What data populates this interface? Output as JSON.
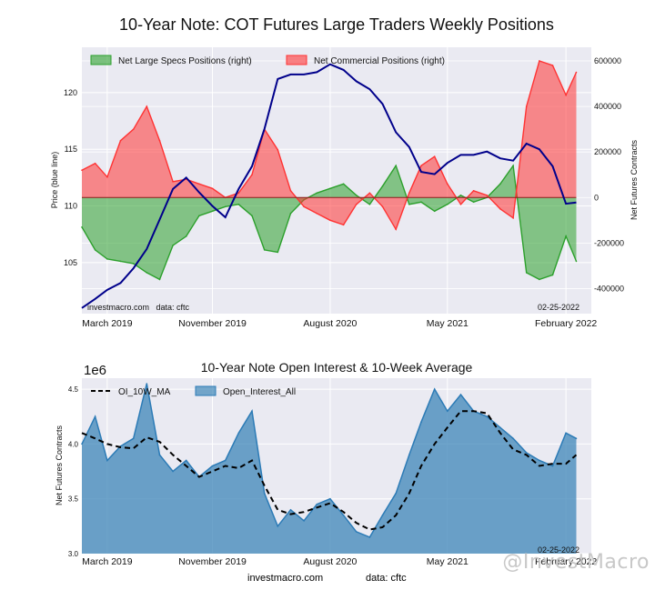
{
  "page_title": "10-Year Note: COT Futures Large Traders Weekly Positions",
  "footer": {
    "source": "investmacro.com",
    "data_note": "data: cftc",
    "watermark": "@InvestMacro"
  },
  "colors": {
    "price_line": "#00008b",
    "specs_fill": "#2ca02c",
    "commercial_fill": "#ff3333",
    "oi_fill": "#3d86b8",
    "oi_line": "#2c7bb6",
    "ma_line": "#000000",
    "plot_bg": "#eaeaf2",
    "grid": "#ffffff"
  },
  "chart_data": [
    {
      "id": "positions",
      "type": "line",
      "title": "",
      "ylabel": "Price (blue line)",
      "y2label": "Net Futures Contracts",
      "x_range": [
        "2019-01-01",
        "2022-04-01"
      ],
      "x_ticks": [
        "March 2019",
        "November 2019",
        "August 2020",
        "May 2021",
        "February 2022"
      ],
      "x_tick_dates": [
        "2019-03-01",
        "2019-11-01",
        "2020-08-01",
        "2021-05-01",
        "2022-02-01"
      ],
      "ylim": [
        100.5,
        124
      ],
      "y_ticks": [
        105,
        110,
        115,
        120
      ],
      "y2lim": [
        -510000,
        660000
      ],
      "y2_ticks": [
        -400000,
        -200000,
        0,
        200000,
        400000,
        600000
      ],
      "legend_position": "top-left",
      "annotation_left": "investmacro.com   data: cftc",
      "annotation_right": "02-25-2022",
      "series": [
        {
          "name": "Net Large Specs Positions (right)",
          "type": "area",
          "axis": "right",
          "x": [
            "2019-01-01",
            "2019-02-01",
            "2019-03-01",
            "2019-04-01",
            "2019-05-01",
            "2019-06-01",
            "2019-07-01",
            "2019-08-01",
            "2019-09-01",
            "2019-10-01",
            "2019-11-01",
            "2019-12-01",
            "2020-01-01",
            "2020-02-01",
            "2020-03-01",
            "2020-04-01",
            "2020-05-01",
            "2020-06-01",
            "2020-07-01",
            "2020-08-01",
            "2020-09-01",
            "2020-10-01",
            "2020-11-01",
            "2020-12-01",
            "2021-01-01",
            "2021-02-01",
            "2021-03-01",
            "2021-04-01",
            "2021-05-01",
            "2021-06-01",
            "2021-07-01",
            "2021-08-01",
            "2021-09-01",
            "2021-10-01",
            "2021-11-01",
            "2021-12-01",
            "2022-01-01",
            "2022-02-01",
            "2022-02-25"
          ],
          "values": [
            -130000,
            -230000,
            -270000,
            -280000,
            -290000,
            -330000,
            -360000,
            -210000,
            -170000,
            -80000,
            -60000,
            -40000,
            -30000,
            -80000,
            -230000,
            -240000,
            -70000,
            -10000,
            20000,
            40000,
            60000,
            10000,
            -30000,
            50000,
            140000,
            -30000,
            -20000,
            -60000,
            -30000,
            10000,
            -20000,
            0,
            60000,
            140000,
            -330000,
            -360000,
            -340000,
            -170000,
            -280000
          ]
        },
        {
          "name": "Net Commercial Positions (right)",
          "type": "area",
          "axis": "right",
          "x": [
            "2019-01-01",
            "2019-02-01",
            "2019-03-01",
            "2019-04-01",
            "2019-05-01",
            "2019-06-01",
            "2019-07-01",
            "2019-08-01",
            "2019-09-01",
            "2019-10-01",
            "2019-11-01",
            "2019-12-01",
            "2020-01-01",
            "2020-02-01",
            "2020-03-01",
            "2020-04-01",
            "2020-05-01",
            "2020-06-01",
            "2020-07-01",
            "2020-08-01",
            "2020-09-01",
            "2020-10-01",
            "2020-11-01",
            "2020-12-01",
            "2021-01-01",
            "2021-02-01",
            "2021-03-01",
            "2021-04-01",
            "2021-05-01",
            "2021-06-01",
            "2021-07-01",
            "2021-08-01",
            "2021-09-01",
            "2021-10-01",
            "2021-11-01",
            "2021-12-01",
            "2022-01-01",
            "2022-02-01",
            "2022-02-25"
          ],
          "values": [
            120000,
            150000,
            90000,
            250000,
            300000,
            400000,
            250000,
            70000,
            80000,
            60000,
            40000,
            0,
            20000,
            100000,
            300000,
            210000,
            30000,
            -40000,
            -70000,
            -100000,
            -120000,
            -30000,
            20000,
            -40000,
            -140000,
            20000,
            140000,
            180000,
            60000,
            -30000,
            30000,
            10000,
            -50000,
            -90000,
            400000,
            600000,
            580000,
            450000,
            550000
          ]
        },
        {
          "name": "",
          "type": "line",
          "axis": "left",
          "x": [
            "2019-01-01",
            "2019-02-01",
            "2019-03-01",
            "2019-04-01",
            "2019-05-01",
            "2019-06-01",
            "2019-07-01",
            "2019-08-01",
            "2019-09-01",
            "2019-10-01",
            "2019-11-01",
            "2019-12-01",
            "2020-01-01",
            "2020-02-01",
            "2020-03-01",
            "2020-04-01",
            "2020-05-01",
            "2020-06-01",
            "2020-07-01",
            "2020-08-01",
            "2020-09-01",
            "2020-10-01",
            "2020-11-01",
            "2020-12-01",
            "2021-01-01",
            "2021-02-01",
            "2021-03-01",
            "2021-04-01",
            "2021-05-01",
            "2021-06-01",
            "2021-07-01",
            "2021-08-01",
            "2021-09-01",
            "2021-10-01",
            "2021-11-01",
            "2021-12-01",
            "2022-01-01",
            "2022-02-01",
            "2022-02-25"
          ],
          "values": [
            101.0,
            101.8,
            102.6,
            103.2,
            104.5,
            106.2,
            108.8,
            111.5,
            112.5,
            111.2,
            110.0,
            109.0,
            111.5,
            113.5,
            116.8,
            121.2,
            121.6,
            121.6,
            121.8,
            122.5,
            122.0,
            121.0,
            120.3,
            119.0,
            116.5,
            115.2,
            113.0,
            112.8,
            113.8,
            114.5,
            114.5,
            114.8,
            114.2,
            114.0,
            115.5,
            115.0,
            113.5,
            110.2,
            110.3
          ]
        }
      ]
    },
    {
      "id": "open-interest",
      "type": "area",
      "title": "10-Year Note Open Interest & 10-Week Average",
      "ylabel": "Net Futures Contracts",
      "offset_label": "1e6",
      "x_range": [
        "2019-01-01",
        "2022-04-01"
      ],
      "x_ticks": [
        "March 2019",
        "November 2019",
        "August 2020",
        "May 2021",
        "February 2022"
      ],
      "x_tick_dates": [
        "2019-03-01",
        "2019-11-01",
        "2020-08-01",
        "2021-05-01",
        "2022-02-01"
      ],
      "ylim": [
        3.0,
        4.6
      ],
      "y_ticks": [
        3.0,
        3.5,
        4.0,
        4.5
      ],
      "legend_position": "top-left",
      "annotation_right": "02-25-2022",
      "series": [
        {
          "name": "Open_Interest_All",
          "type": "area",
          "x": [
            "2019-01-01",
            "2019-02-01",
            "2019-03-01",
            "2019-04-01",
            "2019-05-01",
            "2019-06-01",
            "2019-07-01",
            "2019-08-01",
            "2019-09-01",
            "2019-10-01",
            "2019-11-01",
            "2019-12-01",
            "2020-01-01",
            "2020-02-01",
            "2020-03-01",
            "2020-04-01",
            "2020-05-01",
            "2020-06-01",
            "2020-07-01",
            "2020-08-01",
            "2020-09-01",
            "2020-10-01",
            "2020-11-01",
            "2020-12-01",
            "2021-01-01",
            "2021-02-01",
            "2021-03-01",
            "2021-04-01",
            "2021-05-01",
            "2021-06-01",
            "2021-07-01",
            "2021-08-01",
            "2021-09-01",
            "2021-10-01",
            "2021-11-01",
            "2021-12-01",
            "2022-01-01",
            "2022-02-01",
            "2022-02-25"
          ],
          "values": [
            4.0,
            4.25,
            3.85,
            3.98,
            4.05,
            4.55,
            3.9,
            3.75,
            3.85,
            3.7,
            3.8,
            3.85,
            4.1,
            4.3,
            3.55,
            3.25,
            3.4,
            3.3,
            3.45,
            3.5,
            3.35,
            3.2,
            3.15,
            3.35,
            3.55,
            3.9,
            4.2,
            4.5,
            4.3,
            4.45,
            4.3,
            4.25,
            4.15,
            4.05,
            3.92,
            3.85,
            3.8,
            4.1,
            4.05
          ]
        },
        {
          "name": "OI_10W_MA",
          "type": "line",
          "dashed": true,
          "x": [
            "2019-01-01",
            "2019-02-01",
            "2019-03-01",
            "2019-04-01",
            "2019-05-01",
            "2019-06-01",
            "2019-07-01",
            "2019-08-01",
            "2019-09-01",
            "2019-10-01",
            "2019-11-01",
            "2019-12-01",
            "2020-01-01",
            "2020-02-01",
            "2020-03-01",
            "2020-04-01",
            "2020-05-01",
            "2020-06-01",
            "2020-07-01",
            "2020-08-01",
            "2020-09-01",
            "2020-10-01",
            "2020-11-01",
            "2020-12-01",
            "2021-01-01",
            "2021-02-01",
            "2021-03-01",
            "2021-04-01",
            "2021-05-01",
            "2021-06-01",
            "2021-07-01",
            "2021-08-01",
            "2021-09-01",
            "2021-10-01",
            "2021-11-01",
            "2021-12-01",
            "2022-01-01",
            "2022-02-01",
            "2022-02-25"
          ],
          "values": [
            4.1,
            4.05,
            4.0,
            3.97,
            3.96,
            4.06,
            4.02,
            3.9,
            3.8,
            3.7,
            3.75,
            3.8,
            3.78,
            3.85,
            3.62,
            3.4,
            3.36,
            3.38,
            3.42,
            3.46,
            3.38,
            3.28,
            3.22,
            3.24,
            3.35,
            3.55,
            3.8,
            4.0,
            4.15,
            4.3,
            4.3,
            4.28,
            4.1,
            3.95,
            3.9,
            3.8,
            3.82,
            3.82,
            3.9
          ]
        }
      ]
    }
  ]
}
